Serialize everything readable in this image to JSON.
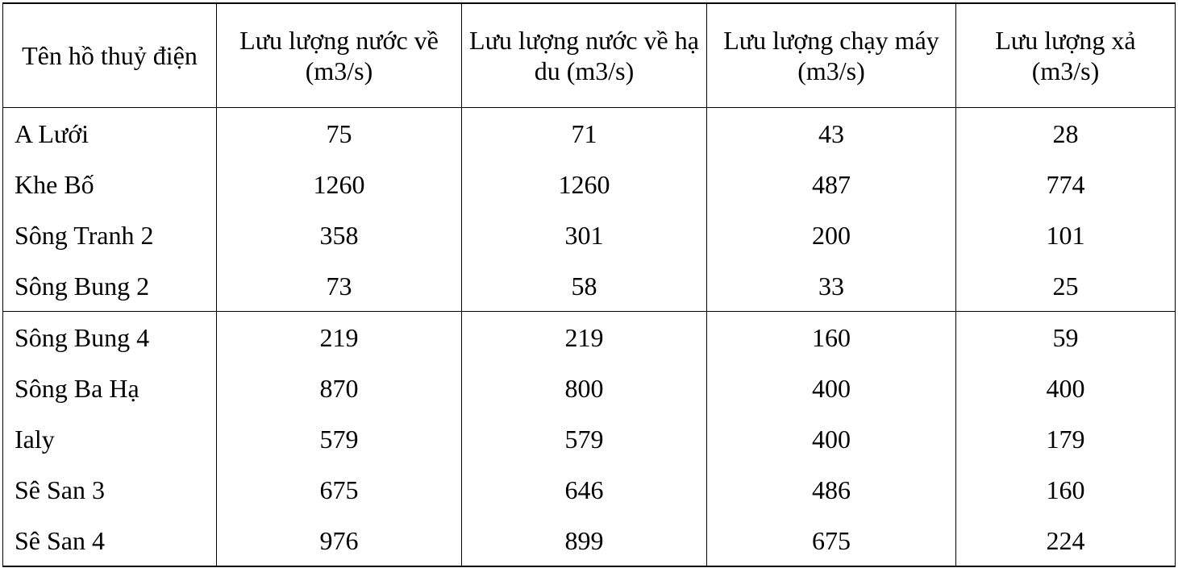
{
  "table": {
    "header": [
      "Tên hồ thuỷ điện",
      "Lưu lượng nước về (m3/s)",
      "Lưu lượng nước về hạ du (m3/s)",
      "Lưu lượng chạy máy (m3/s)",
      "Lưu lượng xả (m3/s)"
    ],
    "rows": [
      [
        "A Lưới",
        75,
        71,
        43,
        28
      ],
      [
        "Khe Bố",
        1260,
        1260,
        487,
        774
      ],
      [
        "Sông Tranh 2",
        358,
        301,
        200,
        101
      ],
      [
        "Sông Bung 2",
        73,
        58,
        33,
        25
      ],
      [
        "Sông Bung 4",
        219,
        219,
        160,
        59
      ],
      [
        "Sông Ba Hạ",
        870,
        800,
        400,
        400
      ],
      [
        "Ialy",
        579,
        579,
        400,
        179
      ],
      [
        "Sê San 3",
        675,
        646,
        486,
        160
      ],
      [
        "Sê San 4",
        976,
        899,
        675,
        224
      ]
    ]
  }
}
